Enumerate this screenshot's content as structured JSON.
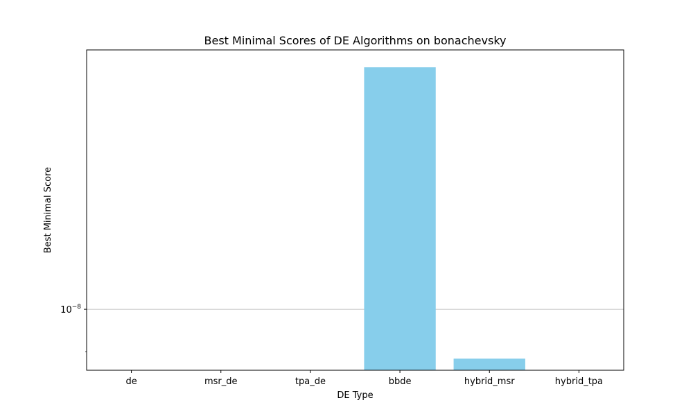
{
  "chart_data": {
    "type": "bar",
    "title": "Best Minimal Scores of DE Algorithms on bonachevsky",
    "xlabel": "DE Type",
    "ylabel": "Best Minimal Score",
    "yscale": "log",
    "ylim": [
      8.6e-09,
      1.9e-08
    ],
    "y_tick_labels": [
      {
        "value": 1e-08,
        "base": "10",
        "exp": "−8"
      }
    ],
    "grid": "horizontal at major y tick",
    "categories": [
      "de",
      "msr_de",
      "tpa_de",
      "bbde",
      "hybrid_msr",
      "hybrid_tpa"
    ],
    "values": [
      null,
      null,
      null,
      1.82e-08,
      8.85e-09,
      null
    ],
    "bar_color": "#87ceeb"
  }
}
